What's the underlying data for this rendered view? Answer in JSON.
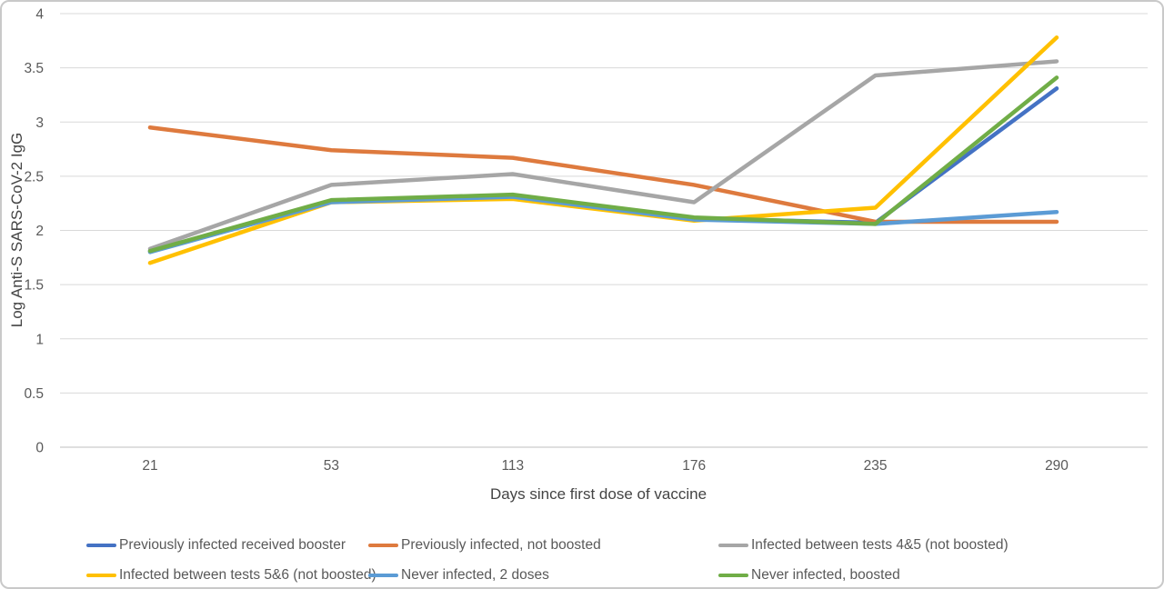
{
  "figure": {
    "background": "#ffffff",
    "border_color": "#c9c9c9"
  },
  "chart_data": {
    "type": "line",
    "title": "",
    "xlabel": "Days since first dose of vaccine",
    "ylabel": "Log Anti-S SARS-CoV-2 IgG",
    "x_categories": [
      "21",
      "53",
      "113",
      "176",
      "235",
      "290"
    ],
    "y_tick_labels": [
      "0",
      "0.5",
      "1",
      "1.5",
      "2",
      "2.5",
      "3",
      "3.5",
      "4"
    ],
    "y_ticks": [
      0,
      0.5,
      1,
      1.5,
      2,
      2.5,
      3,
      3.5,
      4
    ],
    "ylim": [
      0,
      4
    ],
    "grid": "horizontal",
    "legend_position": "bottom",
    "series": [
      {
        "name": "Previously infected received booster",
        "color": "#4472C4",
        "values": [
          1.81,
          2.27,
          2.31,
          2.11,
          2.07,
          3.31
        ]
      },
      {
        "name": "Previously infected, not boosted",
        "color": "#DE7A3E",
        "values": [
          2.95,
          2.74,
          2.67,
          2.42,
          2.08,
          2.08
        ]
      },
      {
        "name": "Infected between tests 4&5 (not boosted)",
        "color": "#A6A6A6",
        "values": [
          1.83,
          2.42,
          2.52,
          2.26,
          3.43,
          3.56
        ]
      },
      {
        "name": "Infected between tests 5&6 (not boosted)",
        "color": "#FFC000",
        "values": [
          1.7,
          2.26,
          2.29,
          2.09,
          2.21,
          3.78
        ]
      },
      {
        "name": "Never infected, 2 doses",
        "color": "#5B9BD5",
        "values": [
          1.8,
          2.26,
          2.31,
          2.1,
          2.06,
          2.17
        ]
      },
      {
        "name": "Never infected, boosted",
        "color": "#70AD47",
        "values": [
          1.81,
          2.28,
          2.33,
          2.12,
          2.06,
          3.41
        ]
      }
    ],
    "style": {
      "gridline_color": "#D9D9D9",
      "axisline_color": "#BFBFBF",
      "tick_label_color": "#595959",
      "axis_title_color": "#444444",
      "line_width": 4.5
    }
  }
}
